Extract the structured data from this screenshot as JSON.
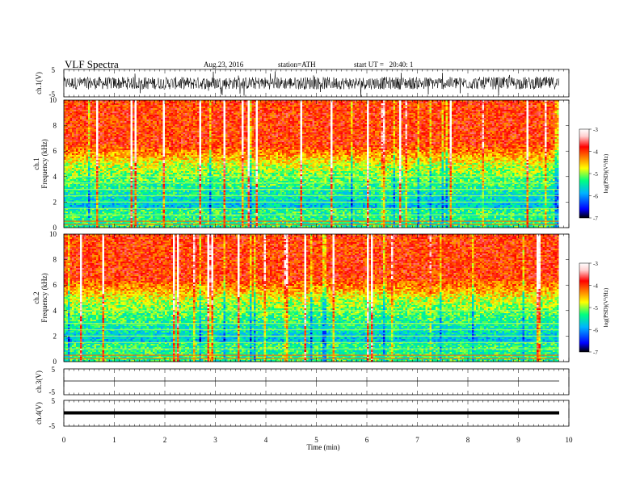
{
  "header": {
    "title": "VLF Spectra",
    "date": "Aug.23, 2016",
    "station": "station=ATH",
    "start_ut": "start UT =   20:40: 1"
  },
  "chart_data": [
    {
      "type": "line",
      "panel": "ch1-waveform",
      "ylabel": "ch.1(V)",
      "yticks": [
        "5",
        "-5"
      ],
      "ylim": [
        -5,
        5
      ],
      "xlim": [
        0,
        10
      ],
      "description_values": {
        "mean": 0,
        "amplitude_typical": 2.5,
        "amplitude_peak": 5
      }
    },
    {
      "type": "heatmap",
      "panel": "ch1-spectrogram",
      "ylabel_line1": "ch.1",
      "ylabel_line2": "Frequency (kHz)",
      "yticks": [
        "0",
        "2",
        "4",
        "6",
        "8",
        "10"
      ],
      "ylim": [
        0,
        10
      ],
      "xlim": [
        0,
        9.8
      ],
      "colorbar": {
        "label": "log(PSD)(V²/Hz)",
        "ticks": [
          "-3",
          "-4",
          "-5",
          "-6",
          "-7"
        ],
        "range": [
          -7,
          -3
        ]
      },
      "hum_lines_khz": [
        0.25,
        0.5,
        1.0,
        1.5,
        2.0,
        2.5,
        3.0,
        3.5,
        4.0
      ]
    },
    {
      "type": "heatmap",
      "panel": "ch2-spectrogram",
      "ylabel_line1": "ch.2",
      "ylabel_line2": "Frequency (kHz)",
      "yticks": [
        "0",
        "2",
        "4",
        "6",
        "8",
        "10"
      ],
      "ylim": [
        0,
        10
      ],
      "xlim": [
        0,
        9.8
      ],
      "colorbar": {
        "label": "log(PSD)(V²/Hz)",
        "ticks": [
          "-3",
          "-4",
          "-5",
          "-6",
          "-7"
        ],
        "range": [
          -7,
          -3
        ]
      },
      "hum_lines_khz": [
        0.25,
        0.5,
        1.0,
        1.5,
        2.0,
        2.5,
        3.0,
        4.0
      ]
    },
    {
      "type": "line",
      "panel": "ch3-waveform",
      "ylabel": "ch.3(V)",
      "yticks": [
        "5",
        "-5"
      ],
      "ylim": [
        -5,
        5
      ],
      "xlim": [
        0,
        10
      ],
      "level_v": 0
    },
    {
      "type": "line",
      "panel": "ch4-waveform",
      "ylabel": "ch.4(V)",
      "yticks": [
        "5",
        "-5"
      ],
      "ylim": [
        -5,
        5
      ],
      "xlim": [
        0,
        10
      ],
      "level_v": 0
    }
  ],
  "xaxis": {
    "label": "Time (min)",
    "ticks": [
      "0",
      "1",
      "2",
      "3",
      "4",
      "5",
      "6",
      "7",
      "8",
      "9",
      "10"
    ]
  },
  "colors": {
    "waveform": "#000000",
    "scale": [
      "#000000",
      "#0000ff",
      "#00b4ff",
      "#00ff80",
      "#ffff00",
      "#ff8000",
      "#ff0000",
      "#ffd0d0",
      "#ffffff"
    ]
  }
}
